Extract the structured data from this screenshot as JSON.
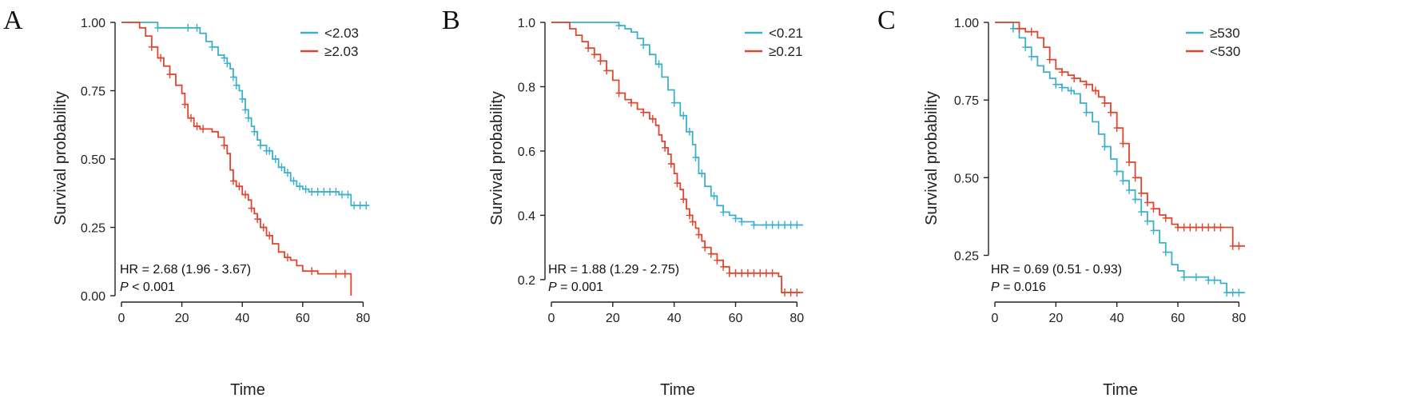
{
  "chart_data": [
    {
      "type": "line",
      "panel": "A",
      "xlabel": "Time",
      "ylabel": "Survival probability",
      "xlim": [
        0,
        82
      ],
      "ylim": [
        0,
        1
      ],
      "xticks": [
        0,
        20,
        40,
        60,
        80
      ],
      "yticks": [
        0,
        0.25,
        0.5,
        0.75,
        1.0
      ],
      "ytick_labels": [
        "0.00",
        "0.25",
        "0.50",
        "0.75",
        "1.00"
      ],
      "legend_position": "top-right",
      "annotation": {
        "hr": "HR = 2.68 (1.96 -  3.67)",
        "p_label": "P",
        "p_text": " < 0.001"
      },
      "series": [
        {
          "name": "<2.03",
          "color": "#3bb1cc",
          "x": [
            0,
            10,
            12,
            16,
            18,
            22,
            26,
            28,
            30,
            32,
            34,
            35,
            36,
            37,
            38,
            39,
            40,
            41,
            42,
            43,
            44,
            45,
            46,
            48,
            50,
            52,
            54,
            56,
            58,
            60,
            62,
            66,
            70,
            72,
            74,
            76,
            78,
            82
          ],
          "y": [
            1.0,
            1.0,
            0.98,
            0.98,
            0.98,
            0.98,
            0.96,
            0.93,
            0.91,
            0.88,
            0.87,
            0.85,
            0.83,
            0.8,
            0.77,
            0.75,
            0.72,
            0.68,
            0.65,
            0.62,
            0.6,
            0.57,
            0.55,
            0.53,
            0.5,
            0.47,
            0.45,
            0.42,
            0.4,
            0.39,
            0.38,
            0.38,
            0.38,
            0.37,
            0.37,
            0.33,
            0.33,
            0.33
          ],
          "censor_x": [
            12,
            22,
            25,
            30,
            34,
            35,
            37,
            38,
            40,
            41,
            42,
            44,
            46,
            48,
            49,
            51,
            53,
            55,
            57,
            59,
            61,
            63,
            65,
            67,
            69,
            71,
            73,
            75,
            77,
            79,
            81
          ]
        },
        {
          "name": "≥2.03",
          "color": "#e0452e",
          "x": [
            0,
            3,
            6,
            8,
            10,
            12,
            14,
            16,
            18,
            20,
            21,
            22,
            24,
            26,
            30,
            32,
            34,
            35,
            36,
            37,
            38,
            40,
            42,
            43,
            44,
            45,
            46,
            48,
            50,
            52,
            54,
            56,
            58,
            60,
            65,
            70,
            72,
            75,
            75.5,
            76
          ],
          "y": [
            1.0,
            1.0,
            0.98,
            0.95,
            0.91,
            0.87,
            0.84,
            0.81,
            0.77,
            0.74,
            0.7,
            0.65,
            0.62,
            0.61,
            0.6,
            0.58,
            0.55,
            0.52,
            0.46,
            0.42,
            0.4,
            0.37,
            0.35,
            0.32,
            0.3,
            0.28,
            0.25,
            0.22,
            0.19,
            0.16,
            0.14,
            0.13,
            0.11,
            0.09,
            0.08,
            0.08,
            0.08,
            0.08,
            0.08,
            0.0
          ],
          "censor_x": [
            10,
            13,
            16,
            21,
            23,
            25,
            27,
            34,
            37,
            39,
            41,
            43,
            45,
            47,
            49,
            55,
            63,
            71,
            74
          ]
        }
      ]
    },
    {
      "type": "line",
      "panel": "B",
      "xlabel": "Time",
      "ylabel": "Survival probability",
      "xlim": [
        0,
        82
      ],
      "ylim": [
        0.15,
        1.0
      ],
      "xticks": [
        0,
        20,
        40,
        60,
        80
      ],
      "yticks": [
        0.2,
        0.4,
        0.6,
        0.8,
        1.0
      ],
      "ytick_labels": [
        "0.2",
        "0.4",
        "0.6",
        "0.8",
        "1.0"
      ],
      "legend_position": "top-right",
      "annotation": {
        "hr": "HR = 1.88 (1.29 -  2.75)",
        "p_label": "P",
        "p_text": " = 0.001"
      },
      "series": [
        {
          "name": "<0.21",
          "color": "#3bb1cc",
          "x": [
            0,
            20,
            22,
            24,
            26,
            28,
            30,
            32,
            34,
            36,
            38,
            40,
            42,
            44,
            46,
            47,
            48,
            50,
            52,
            54,
            56,
            58,
            60,
            62,
            66,
            70,
            74,
            78,
            82
          ],
          "y": [
            1.0,
            1.0,
            0.99,
            0.98,
            0.97,
            0.95,
            0.93,
            0.9,
            0.87,
            0.83,
            0.79,
            0.75,
            0.71,
            0.66,
            0.62,
            0.58,
            0.53,
            0.49,
            0.46,
            0.43,
            0.41,
            0.4,
            0.39,
            0.38,
            0.37,
            0.37,
            0.37,
            0.37,
            0.37
          ],
          "censor_x": [
            22,
            30,
            35,
            40,
            43,
            45,
            47,
            49,
            53,
            56,
            60,
            62,
            66,
            70,
            72,
            74,
            76,
            78,
            80
          ]
        },
        {
          "name": "≥0.21",
          "color": "#e0452e",
          "x": [
            0,
            3,
            6,
            8,
            10,
            12,
            14,
            16,
            18,
            20,
            22,
            24,
            26,
            28,
            30,
            32,
            34,
            35,
            36,
            37,
            38,
            39,
            40,
            41,
            42,
            43,
            44,
            45,
            46,
            47,
            48,
            49,
            50,
            52,
            54,
            56,
            58,
            60,
            64,
            68,
            72,
            74,
            75,
            78,
            80,
            82
          ],
          "y": [
            1.0,
            1.0,
            0.98,
            0.96,
            0.94,
            0.92,
            0.9,
            0.88,
            0.85,
            0.82,
            0.78,
            0.76,
            0.75,
            0.73,
            0.72,
            0.7,
            0.68,
            0.65,
            0.63,
            0.61,
            0.59,
            0.56,
            0.53,
            0.5,
            0.48,
            0.45,
            0.42,
            0.4,
            0.38,
            0.36,
            0.34,
            0.32,
            0.3,
            0.28,
            0.26,
            0.24,
            0.22,
            0.22,
            0.22,
            0.22,
            0.22,
            0.21,
            0.16,
            0.16,
            0.16,
            0.16
          ],
          "censor_x": [
            12,
            14,
            16,
            18,
            22,
            26,
            30,
            33,
            37,
            39,
            41,
            43,
            45,
            46,
            48,
            50,
            52,
            54,
            56,
            58,
            60,
            62,
            64,
            66,
            68,
            70,
            72,
            76,
            78,
            80
          ]
        }
      ]
    },
    {
      "type": "line",
      "panel": "C",
      "xlabel": "Time",
      "ylabel": "Survival probability",
      "xlim": [
        0,
        82
      ],
      "ylim": [
        0.12,
        1.0
      ],
      "xticks": [
        0,
        20,
        40,
        60,
        80
      ],
      "yticks": [
        0.25,
        0.5,
        0.75,
        1.0
      ],
      "ytick_labels": [
        "0.25",
        "0.50",
        "0.75",
        "1.00"
      ],
      "legend_position": "top-right",
      "annotation": {
        "hr": "HR = 0.69 (0.51 -  0.93)",
        "p_label": "P",
        "p_text": " = 0.016"
      },
      "series": [
        {
          "name": "≥530",
          "color": "#3bb1cc",
          "x": [
            0,
            4,
            6,
            8,
            10,
            12,
            14,
            16,
            18,
            20,
            22,
            24,
            26,
            28,
            30,
            32,
            34,
            36,
            38,
            40,
            42,
            44,
            46,
            48,
            50,
            52,
            54,
            56,
            58,
            60,
            62,
            66,
            70,
            74,
            76,
            78,
            82
          ],
          "y": [
            1.0,
            1.0,
            0.98,
            0.95,
            0.92,
            0.89,
            0.86,
            0.84,
            0.82,
            0.8,
            0.79,
            0.78,
            0.77,
            0.74,
            0.71,
            0.68,
            0.64,
            0.6,
            0.56,
            0.52,
            0.49,
            0.46,
            0.43,
            0.39,
            0.36,
            0.33,
            0.29,
            0.26,
            0.22,
            0.2,
            0.18,
            0.18,
            0.17,
            0.16,
            0.13,
            0.13,
            0.13
          ],
          "censor_x": [
            6,
            10,
            12,
            20,
            22,
            25,
            30,
            36,
            40,
            42,
            44,
            46,
            48,
            50,
            52,
            56,
            62,
            66,
            70,
            72,
            76,
            78,
            80
          ]
        },
        {
          "name": "<530",
          "color": "#e0452e",
          "x": [
            0,
            6,
            8,
            10,
            14,
            16,
            18,
            20,
            22,
            24,
            26,
            28,
            30,
            32,
            34,
            36,
            38,
            40,
            42,
            44,
            46,
            48,
            50,
            52,
            54,
            56,
            58,
            60,
            64,
            68,
            72,
            76,
            78,
            82
          ],
          "y": [
            1.0,
            1.0,
            0.98,
            0.97,
            0.95,
            0.92,
            0.88,
            0.85,
            0.84,
            0.83,
            0.82,
            0.81,
            0.8,
            0.78,
            0.76,
            0.74,
            0.71,
            0.66,
            0.61,
            0.55,
            0.5,
            0.45,
            0.42,
            0.4,
            0.38,
            0.37,
            0.35,
            0.34,
            0.34,
            0.34,
            0.34,
            0.34,
            0.28,
            0.28
          ],
          "censor_x": [
            8,
            12,
            18,
            22,
            26,
            30,
            33,
            36,
            38,
            40,
            42,
            44,
            46,
            48,
            50,
            52,
            56,
            60,
            62,
            64,
            66,
            68,
            70,
            72,
            74,
            78,
            80
          ]
        }
      ]
    }
  ]
}
